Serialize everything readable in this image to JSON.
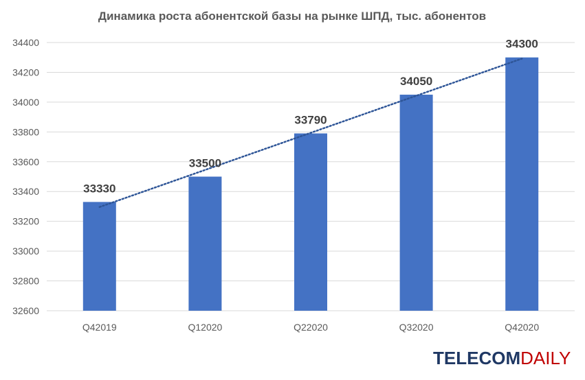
{
  "chart_data": {
    "type": "bar",
    "title": "Динамика роста абонентской базы на рынке ШПД, тыс. абонентов",
    "categories": [
      "Q42019",
      "Q12020",
      "Q22020",
      "Q32020",
      "Q42020"
    ],
    "values": [
      33330,
      33500,
      33790,
      34050,
      34300
    ],
    "data_labels": [
      "33330",
      "33500",
      "33790",
      "34050",
      "34300"
    ],
    "ylim": [
      32600,
      34400
    ],
    "yticks": [
      32600,
      32800,
      33000,
      33200,
      33400,
      33600,
      33800,
      34000,
      34200,
      34400
    ],
    "ytick_labels": [
      "32600",
      "32800",
      "33000",
      "33200",
      "33400",
      "33600",
      "33800",
      "34000",
      "34200",
      "34400"
    ],
    "grid": true,
    "trendline": "linear",
    "colors": {
      "bar": "#4472c4",
      "trendline": "#2e5597",
      "grid": "#d9d9d9"
    }
  },
  "branding": {
    "part1": "TELECOM",
    "part2": "DAILY"
  }
}
